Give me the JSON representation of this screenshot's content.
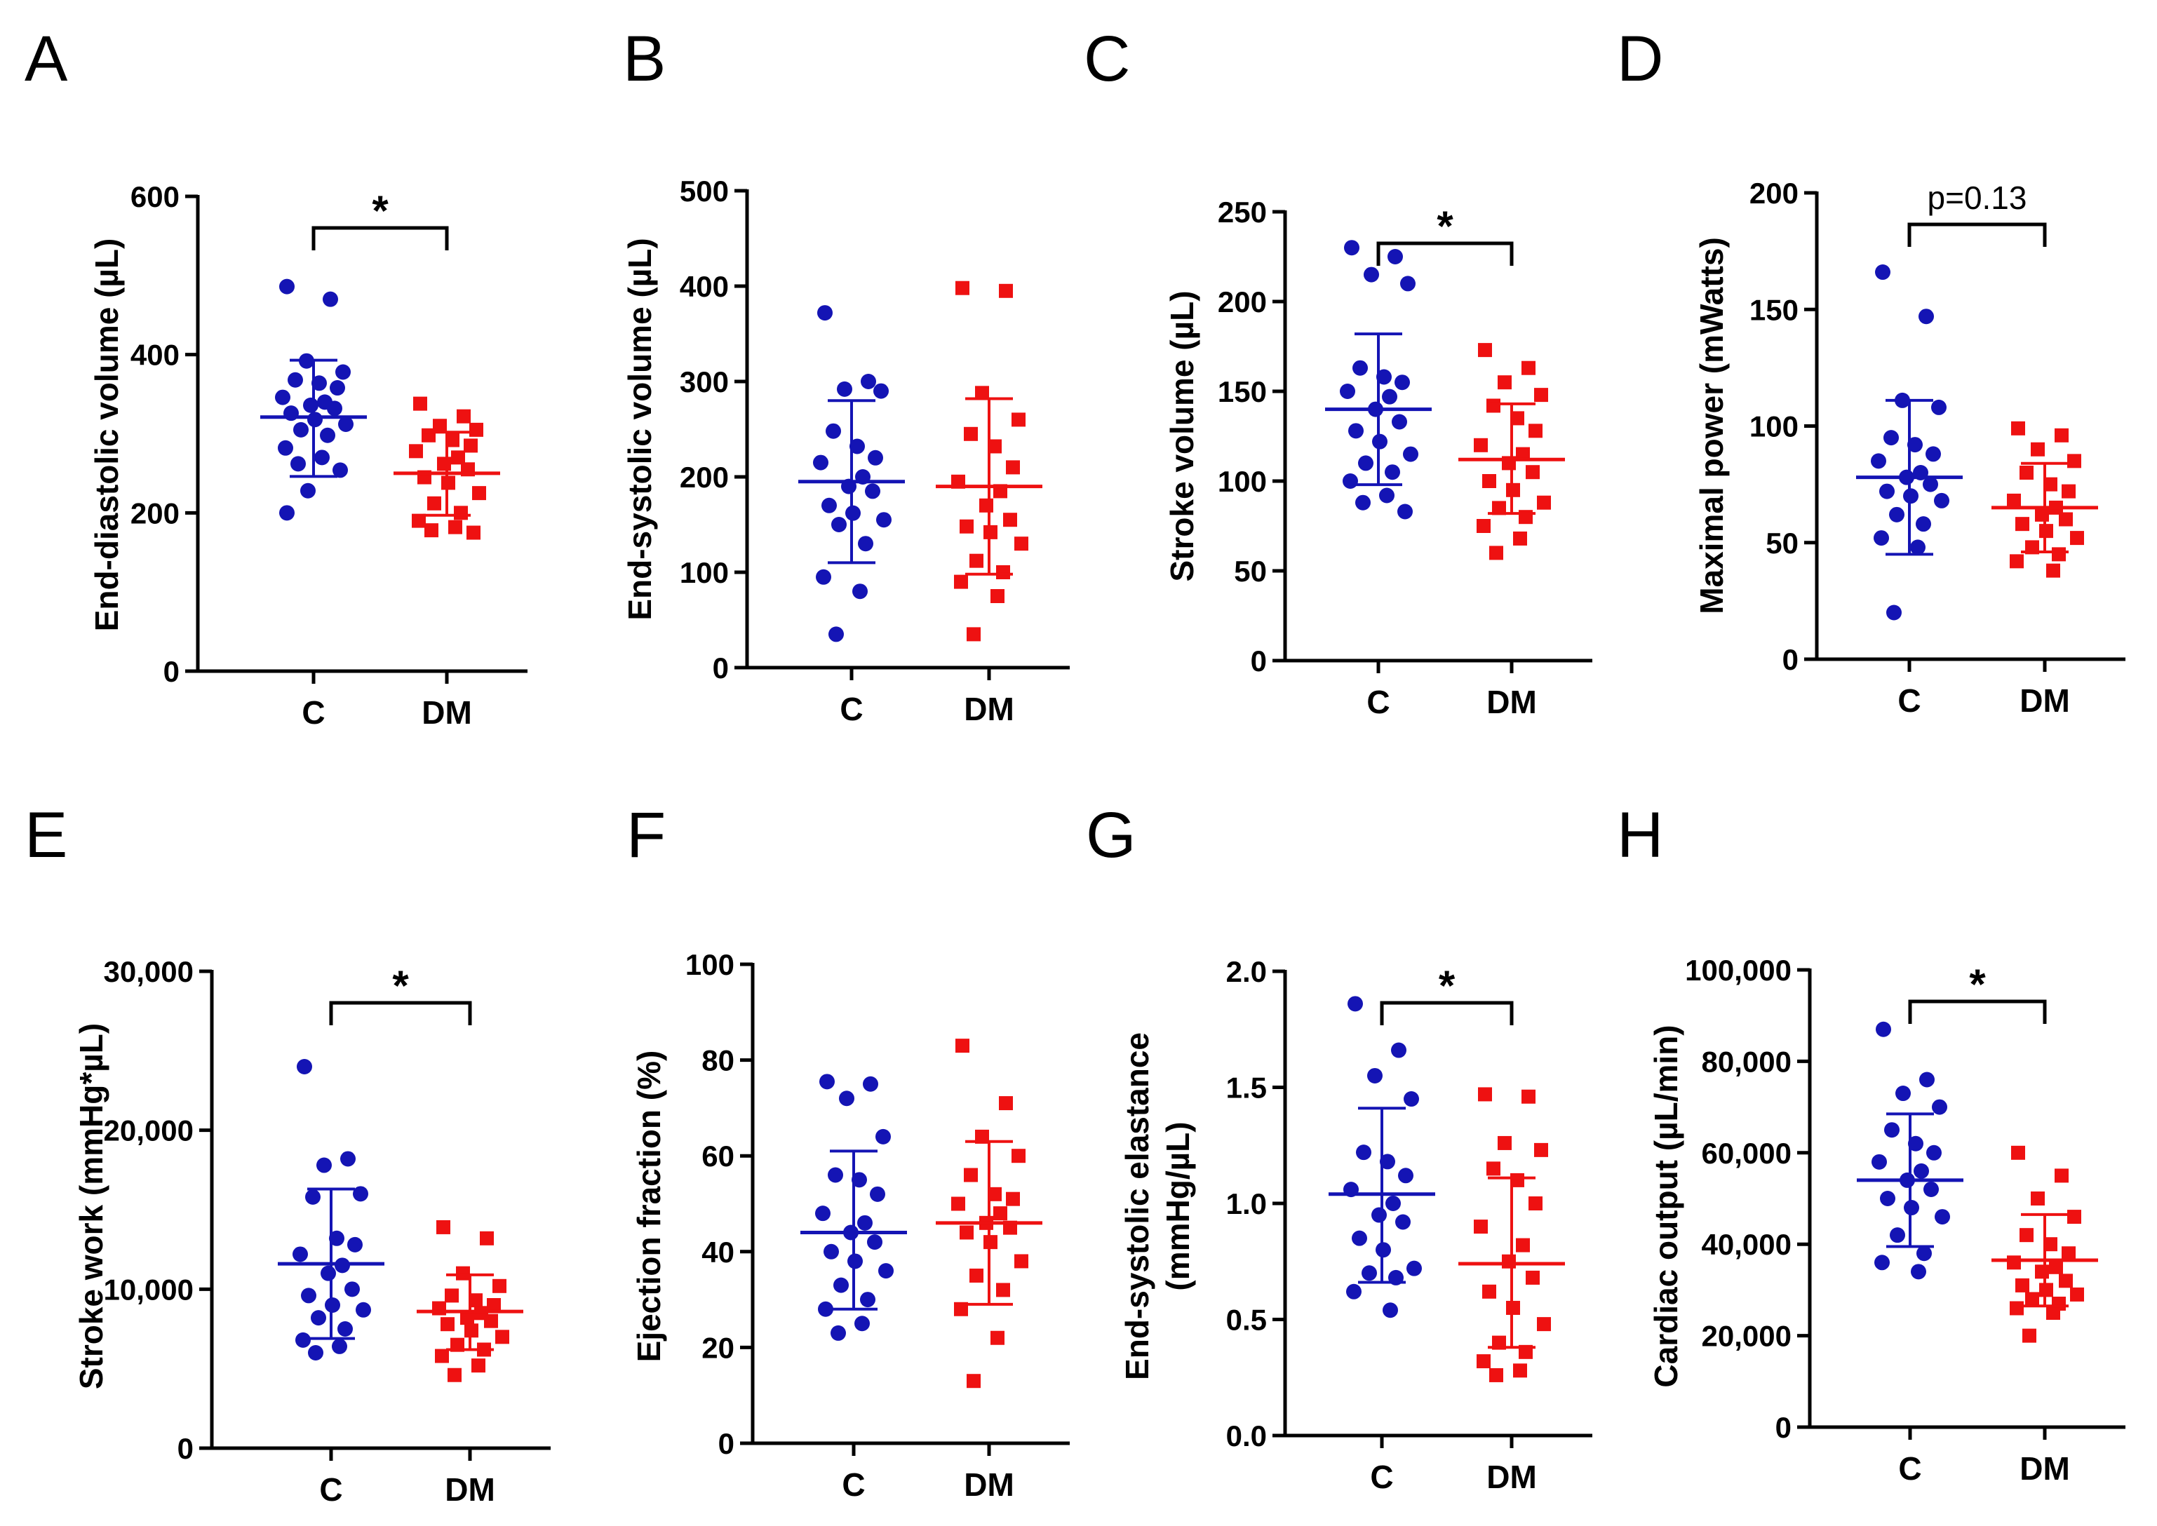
{
  "figure": {
    "colors": {
      "C": "#1414b4",
      "DM": "#ee1111",
      "axis": "#000000"
    }
  },
  "chart_data": [
    {
      "panel": "A",
      "type": "scatter",
      "ylabel": "End-diastolic volume (µL)",
      "categories": [
        "C",
        "DM"
      ],
      "ylim": [
        0,
        600
      ],
      "ticks": [
        0,
        200,
        400,
        600
      ],
      "tick_labels": [
        "0",
        "200",
        "400",
        "600"
      ],
      "series": [
        {
          "name": "C",
          "mean": 321,
          "sd_low": 246,
          "sd_high": 393,
          "values": [
            486,
            470,
            392,
            378,
            368,
            364,
            358,
            346,
            340,
            336,
            332,
            326,
            318,
            312,
            305,
            298,
            282,
            270,
            262,
            254,
            228,
            200
          ]
        },
        {
          "name": "DM",
          "mean": 250,
          "sd_low": 197,
          "sd_high": 302,
          "values": [
            338,
            322,
            310,
            305,
            298,
            292,
            285,
            278,
            270,
            262,
            255,
            245,
            238,
            225,
            212,
            200,
            190,
            182,
            178,
            175
          ]
        }
      ],
      "significance": {
        "text": "*",
        "from": "C",
        "to": "DM"
      }
    },
    {
      "panel": "B",
      "type": "scatter",
      "ylabel": "End-systolic volume (µL)",
      "categories": [
        "C",
        "DM"
      ],
      "ylim": [
        0,
        500
      ],
      "ticks": [
        0,
        100,
        200,
        300,
        400,
        500
      ],
      "tick_labels": [
        "0",
        "100",
        "200",
        "300",
        "400",
        "500"
      ],
      "series": [
        {
          "name": "C",
          "mean": 195,
          "sd_low": 110,
          "sd_high": 280,
          "values": [
            372,
            300,
            292,
            290,
            248,
            232,
            220,
            215,
            200,
            190,
            185,
            170,
            162,
            155,
            150,
            130,
            95,
            80,
            35
          ]
        },
        {
          "name": "DM",
          "mean": 190,
          "sd_low": 98,
          "sd_high": 282,
          "values": [
            398,
            395,
            288,
            260,
            245,
            232,
            210,
            195,
            185,
            170,
            155,
            148,
            142,
            130,
            112,
            100,
            90,
            75,
            35
          ]
        }
      ],
      "significance": null
    },
    {
      "panel": "C",
      "type": "scatter",
      "ylabel": "Stroke volume (µL)",
      "categories": [
        "C",
        "DM"
      ],
      "ylim": [
        0,
        250
      ],
      "ticks": [
        0,
        50,
        100,
        150,
        200,
        250
      ],
      "tick_labels": [
        "0",
        "50",
        "100",
        "150",
        "200",
        "250"
      ],
      "series": [
        {
          "name": "C",
          "mean": 140,
          "sd_low": 98,
          "sd_high": 182,
          "values": [
            230,
            225,
            215,
            210,
            163,
            158,
            155,
            150,
            147,
            140,
            133,
            128,
            122,
            115,
            110,
            105,
            100,
            92,
            88,
            83
          ]
        },
        {
          "name": "DM",
          "mean": 112,
          "sd_low": 82,
          "sd_high": 143,
          "values": [
            173,
            163,
            155,
            148,
            142,
            135,
            128,
            120,
            115,
            110,
            105,
            100,
            95,
            88,
            85,
            80,
            75,
            68,
            60
          ]
        }
      ],
      "significance": {
        "text": "*",
        "from": "C",
        "to": "DM"
      }
    },
    {
      "panel": "D",
      "type": "scatter",
      "ylabel": "Maximal power (mWatts)",
      "categories": [
        "C",
        "DM"
      ],
      "ylim": [
        0,
        200
      ],
      "ticks": [
        0,
        50,
        100,
        150,
        200
      ],
      "tick_labels": [
        "0",
        "50",
        "100",
        "150",
        "200"
      ],
      "series": [
        {
          "name": "C",
          "mean": 78,
          "sd_low": 45,
          "sd_high": 111,
          "values": [
            166,
            147,
            111,
            108,
            95,
            92,
            88,
            85,
            80,
            78,
            75,
            72,
            70,
            68,
            62,
            58,
            52,
            48,
            20
          ]
        },
        {
          "name": "DM",
          "mean": 65,
          "sd_low": 46,
          "sd_high": 84,
          "values": [
            99,
            96,
            90,
            85,
            80,
            75,
            72,
            68,
            65,
            62,
            60,
            58,
            55,
            52,
            48,
            45,
            42,
            38
          ]
        }
      ],
      "significance": {
        "text": "p=0.13",
        "from": "C",
        "to": "DM"
      }
    },
    {
      "panel": "E",
      "type": "scatter",
      "ylabel": "Stroke work (mmHg*µL)",
      "categories": [
        "C",
        "DM"
      ],
      "ylim": [
        0,
        30000
      ],
      "ticks": [
        0,
        10000,
        20000,
        30000
      ],
      "tick_labels": [
        "0",
        "10,000",
        "20,000",
        "30,000"
      ],
      "series": [
        {
          "name": "C",
          "mean": 11600,
          "sd_low": 6900,
          "sd_high": 16300,
          "values": [
            24000,
            18200,
            17800,
            16000,
            15800,
            13200,
            12800,
            12200,
            11500,
            11000,
            10000,
            9600,
            9000,
            8700,
            8200,
            7500,
            6800,
            6400,
            6000
          ]
        },
        {
          "name": "DM",
          "mean": 8600,
          "sd_low": 6200,
          "sd_high": 10900,
          "values": [
            13900,
            13200,
            11000,
            10200,
            9600,
            9300,
            9000,
            8800,
            8500,
            8200,
            8000,
            7800,
            7400,
            7000,
            6500,
            6200,
            5800,
            5200,
            4600
          ]
        }
      ],
      "significance": {
        "text": "*",
        "from": "C",
        "to": "DM"
      }
    },
    {
      "panel": "F",
      "type": "scatter",
      "ylabel": "Ejection fraction (%)",
      "categories": [
        "C",
        "DM"
      ],
      "ylim": [
        0,
        100
      ],
      "ticks": [
        0,
        20,
        40,
        60,
        80,
        100
      ],
      "tick_labels": [
        "0",
        "20",
        "40",
        "60",
        "80",
        "100"
      ],
      "series": [
        {
          "name": "C",
          "mean": 44,
          "sd_low": 28,
          "sd_high": 61,
          "values": [
            75.5,
            75,
            72,
            64,
            56,
            55,
            52,
            48,
            46,
            44,
            42,
            40,
            38,
            36,
            33,
            30,
            28,
            25,
            23
          ]
        },
        {
          "name": "DM",
          "mean": 46,
          "sd_low": 29,
          "sd_high": 63,
          "values": [
            83,
            71,
            64,
            60,
            56,
            52,
            51,
            50,
            48,
            46,
            45,
            44,
            42,
            38,
            35,
            32,
            28,
            22,
            13
          ]
        }
      ],
      "significance": null
    },
    {
      "panel": "G",
      "type": "scatter",
      "ylabel": "End-systolic elastance (mmHg/µL)",
      "ylabel_lines": [
        "End-systolic elastance",
        "(mmHg/µL)"
      ],
      "categories": [
        "C",
        "DM"
      ],
      "ylim": [
        0,
        2.0
      ],
      "ticks": [
        0,
        0.5,
        1.0,
        1.5,
        2.0
      ],
      "tick_labels": [
        "0.0",
        "0.5",
        "1.0",
        "1.5",
        "2.0"
      ],
      "series": [
        {
          "name": "C",
          "mean": 1.04,
          "sd_low": 0.66,
          "sd_high": 1.41,
          "values": [
            1.86,
            1.66,
            1.55,
            1.45,
            1.22,
            1.18,
            1.12,
            1.06,
            1.0,
            0.95,
            0.92,
            0.85,
            0.8,
            0.72,
            0.7,
            0.68,
            0.62,
            0.54
          ]
        },
        {
          "name": "DM",
          "mean": 0.74,
          "sd_low": 0.38,
          "sd_high": 1.11,
          "values": [
            1.47,
            1.46,
            1.26,
            1.23,
            1.15,
            1.1,
            1.0,
            0.9,
            0.82,
            0.75,
            0.68,
            0.62,
            0.55,
            0.48,
            0.4,
            0.36,
            0.32,
            0.28,
            0.26
          ]
        }
      ],
      "significance": {
        "text": "*",
        "from": "C",
        "to": "DM"
      }
    },
    {
      "panel": "H",
      "type": "scatter",
      "ylabel": "Cardiac output (µL/min)",
      "categories": [
        "C",
        "DM"
      ],
      "ylim": [
        0,
        100000
      ],
      "ticks": [
        0,
        20000,
        40000,
        60000,
        80000,
        100000
      ],
      "tick_labels": [
        "0",
        "20,000",
        "40,000",
        "60,000",
        "80,000",
        "100,000"
      ],
      "series": [
        {
          "name": "C",
          "mean": 54000,
          "sd_low": 39500,
          "sd_high": 68500,
          "values": [
            87000,
            76000,
            73000,
            70000,
            65000,
            62000,
            60000,
            58000,
            56000,
            54000,
            52000,
            50000,
            48000,
            46000,
            42000,
            38000,
            36000,
            34000
          ]
        },
        {
          "name": "DM",
          "mean": 36500,
          "sd_low": 26500,
          "sd_high": 46500,
          "values": [
            60000,
            55000,
            50000,
            46000,
            42000,
            40000,
            38000,
            36000,
            35000,
            34000,
            32000,
            31000,
            30000,
            29000,
            28000,
            27000,
            26000,
            25000,
            20000
          ]
        }
      ],
      "significance": {
        "text": "*",
        "from": "C",
        "to": "DM"
      }
    }
  ]
}
